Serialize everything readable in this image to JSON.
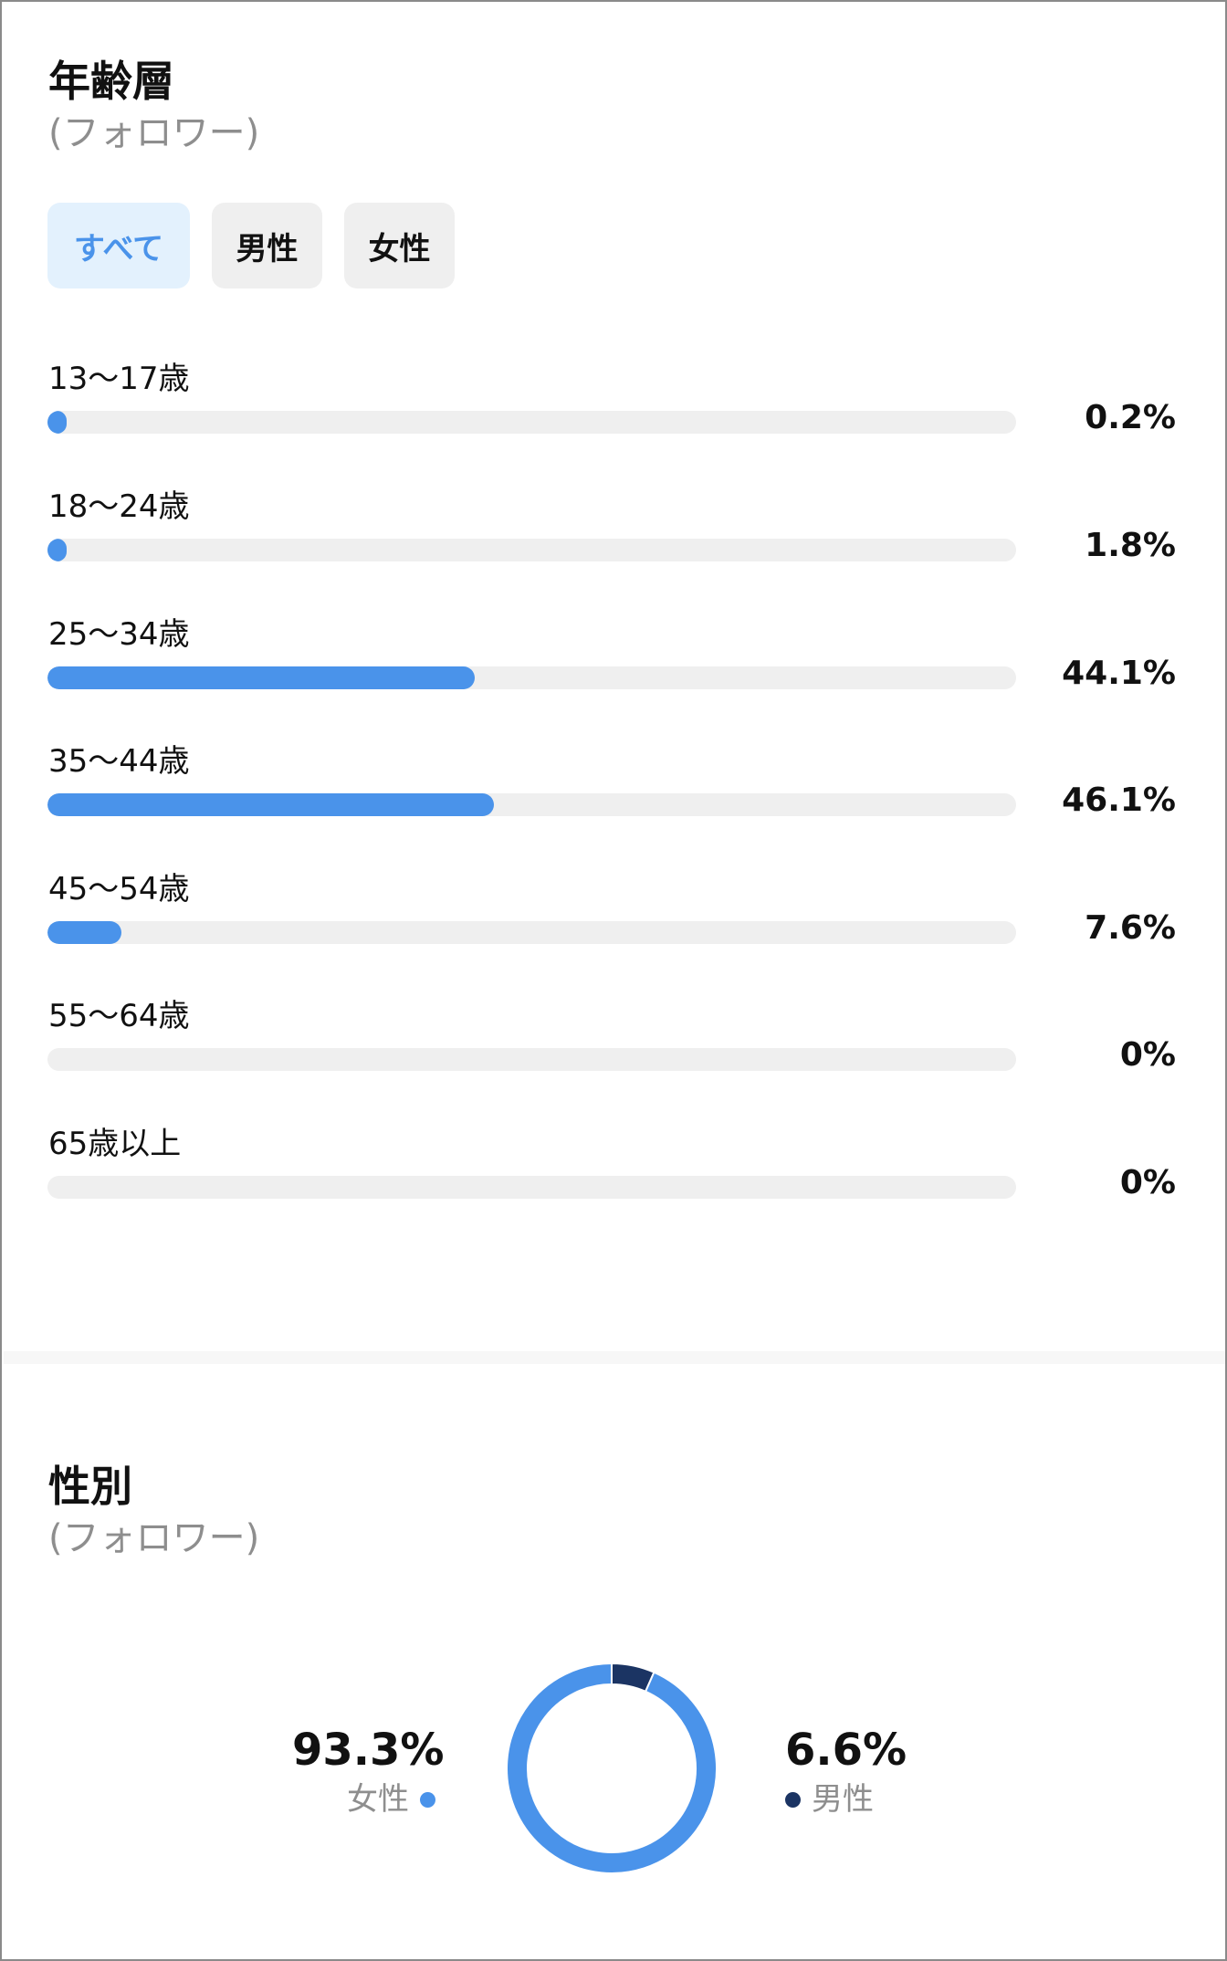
{
  "age_section": {
    "title": "年齢層",
    "subtitle": "(フォロワー)",
    "tabs": [
      {
        "label": "すべて",
        "active": true
      },
      {
        "label": "男性",
        "active": false
      },
      {
        "label": "女性",
        "active": false
      }
    ],
    "rows": [
      {
        "label": "13〜17歳",
        "percent_text": "0.2%",
        "value": 0.2
      },
      {
        "label": "18〜24歳",
        "percent_text": "1.8%",
        "value": 1.8
      },
      {
        "label": "25〜34歳",
        "percent_text": "44.1%",
        "value": 44.1
      },
      {
        "label": "35〜44歳",
        "percent_text": "46.1%",
        "value": 46.1
      },
      {
        "label": "45〜54歳",
        "percent_text": "7.6%",
        "value": 7.6
      },
      {
        "label": "55〜64歳",
        "percent_text": "0%",
        "value": 0
      },
      {
        "label": "65歳以上",
        "percent_text": "0%",
        "value": 0
      }
    ]
  },
  "gender_section": {
    "title": "性別",
    "subtitle": "(フォロワー)",
    "female": {
      "percent_text": "93.3%",
      "label": "女性",
      "value": 93.3,
      "color": "#4a93ea"
    },
    "male": {
      "percent_text": "6.6%",
      "label": "男性",
      "value": 6.6,
      "color": "#1b3463"
    }
  },
  "colors": {
    "accent": "#4a93ea",
    "track": "#efefef",
    "active_tab_bg": "#e3f1fd",
    "dark_navy": "#1b3463"
  }
}
